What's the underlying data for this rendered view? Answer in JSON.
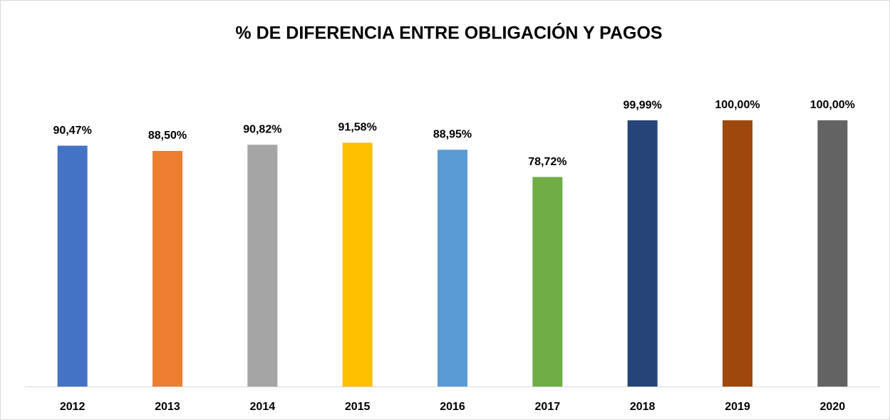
{
  "chart_data": {
    "type": "bar",
    "title": "% DE DIFERENCIA ENTRE OBLIGACIÓN Y PAGOS",
    "categories": [
      "2012",
      "2013",
      "2014",
      "2015",
      "2016",
      "2017",
      "2018",
      "2019",
      "2020"
    ],
    "values": [
      90.47,
      88.5,
      90.82,
      91.58,
      88.95,
      78.72,
      99.99,
      100.0,
      100.0
    ],
    "value_labels": [
      "90,47%",
      "88,50%",
      "90,82%",
      "91,58%",
      "88,95%",
      "78,72%",
      "99,99%",
      "100,00%",
      "100,00%"
    ],
    "colors": [
      "#4472c4",
      "#ed7d31",
      "#a5a5a5",
      "#ffc000",
      "#5b9bd5",
      "#70ad47",
      "#264478",
      "#9e480e",
      "#636363"
    ],
    "ylim": [
      0,
      100
    ]
  }
}
